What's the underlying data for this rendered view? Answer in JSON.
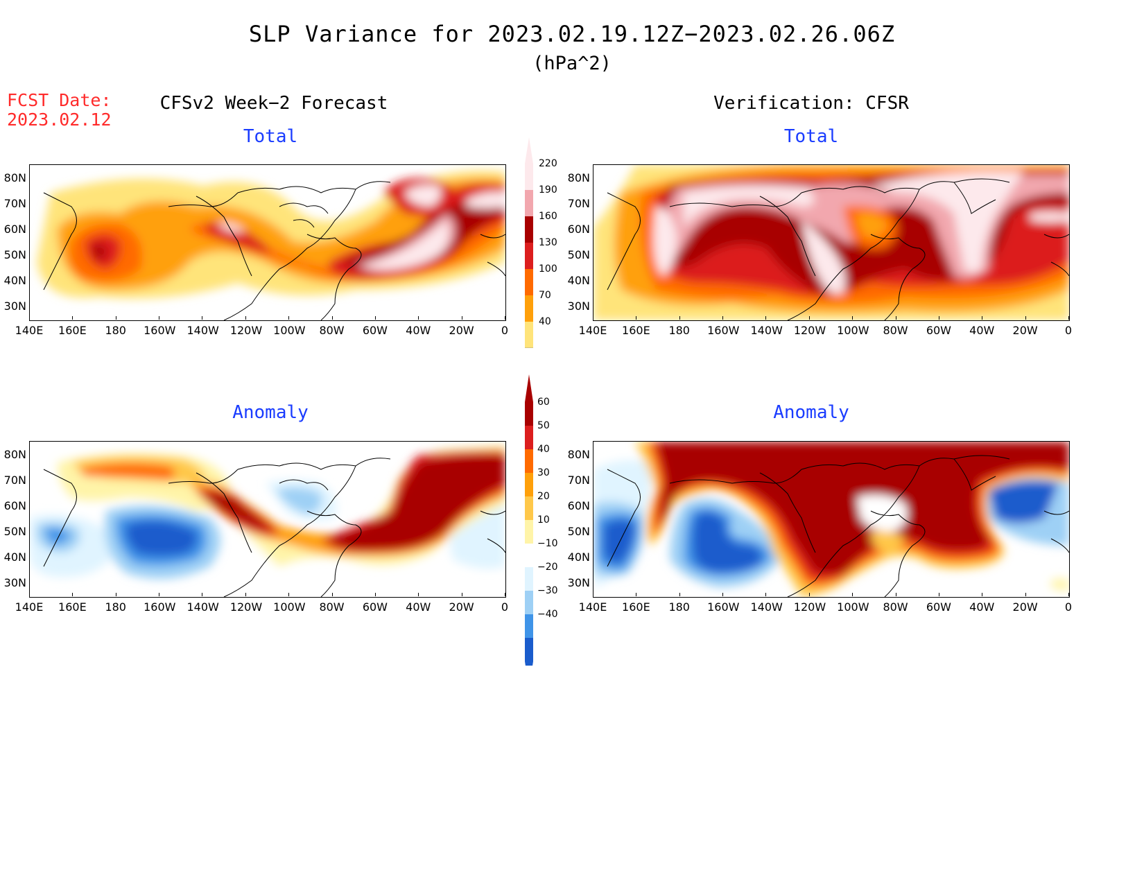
{
  "title": "SLP Variance for 2023.02.19.12Z−2023.02.26.06Z",
  "units": "(hPa^2)",
  "fcst_date": {
    "label": "FCST Date:",
    "value": "2023.02.12"
  },
  "left_header": "CFSv2 Week−2 Forecast",
  "right_header": "Verification: CFSR",
  "panel_titles": {
    "total": "Total",
    "anomaly": "Anomaly"
  },
  "lon_labels": [
    "140E",
    "160E",
    "180",
    "160W",
    "140W",
    "120W",
    "100W",
    "80W",
    "60W",
    "40W",
    "20W",
    "0"
  ],
  "lat_labels": [
    "80N",
    "70N",
    "60N",
    "50N",
    "40N",
    "30N"
  ],
  "colorbar_total": {
    "levels": [
      "220",
      "190",
      "160",
      "130",
      "100",
      "70",
      "40"
    ],
    "colors": [
      "#fde9ec",
      "#f2a7ae",
      "#a80000",
      "#dc1e1e",
      "#ff6a00",
      "#ffa00a",
      "#ffe47a"
    ]
  },
  "colorbar_anomaly": {
    "levels": [
      "60",
      "50",
      "40",
      "30",
      "20",
      "10",
      "−10",
      "−20",
      "−30",
      "−40"
    ],
    "colors": [
      "#a80000",
      "#dc1e1e",
      "#ff6a00",
      "#ffa00a",
      "#ffc84a",
      "#fff4a8",
      "#ffffff",
      "#e0f4ff",
      "#9ed0f5",
      "#3f94e8",
      "#1a5ccc"
    ]
  },
  "colors": {
    "title_red": "#ff2a2a",
    "panel_title_blue": "#1a3cff"
  }
}
